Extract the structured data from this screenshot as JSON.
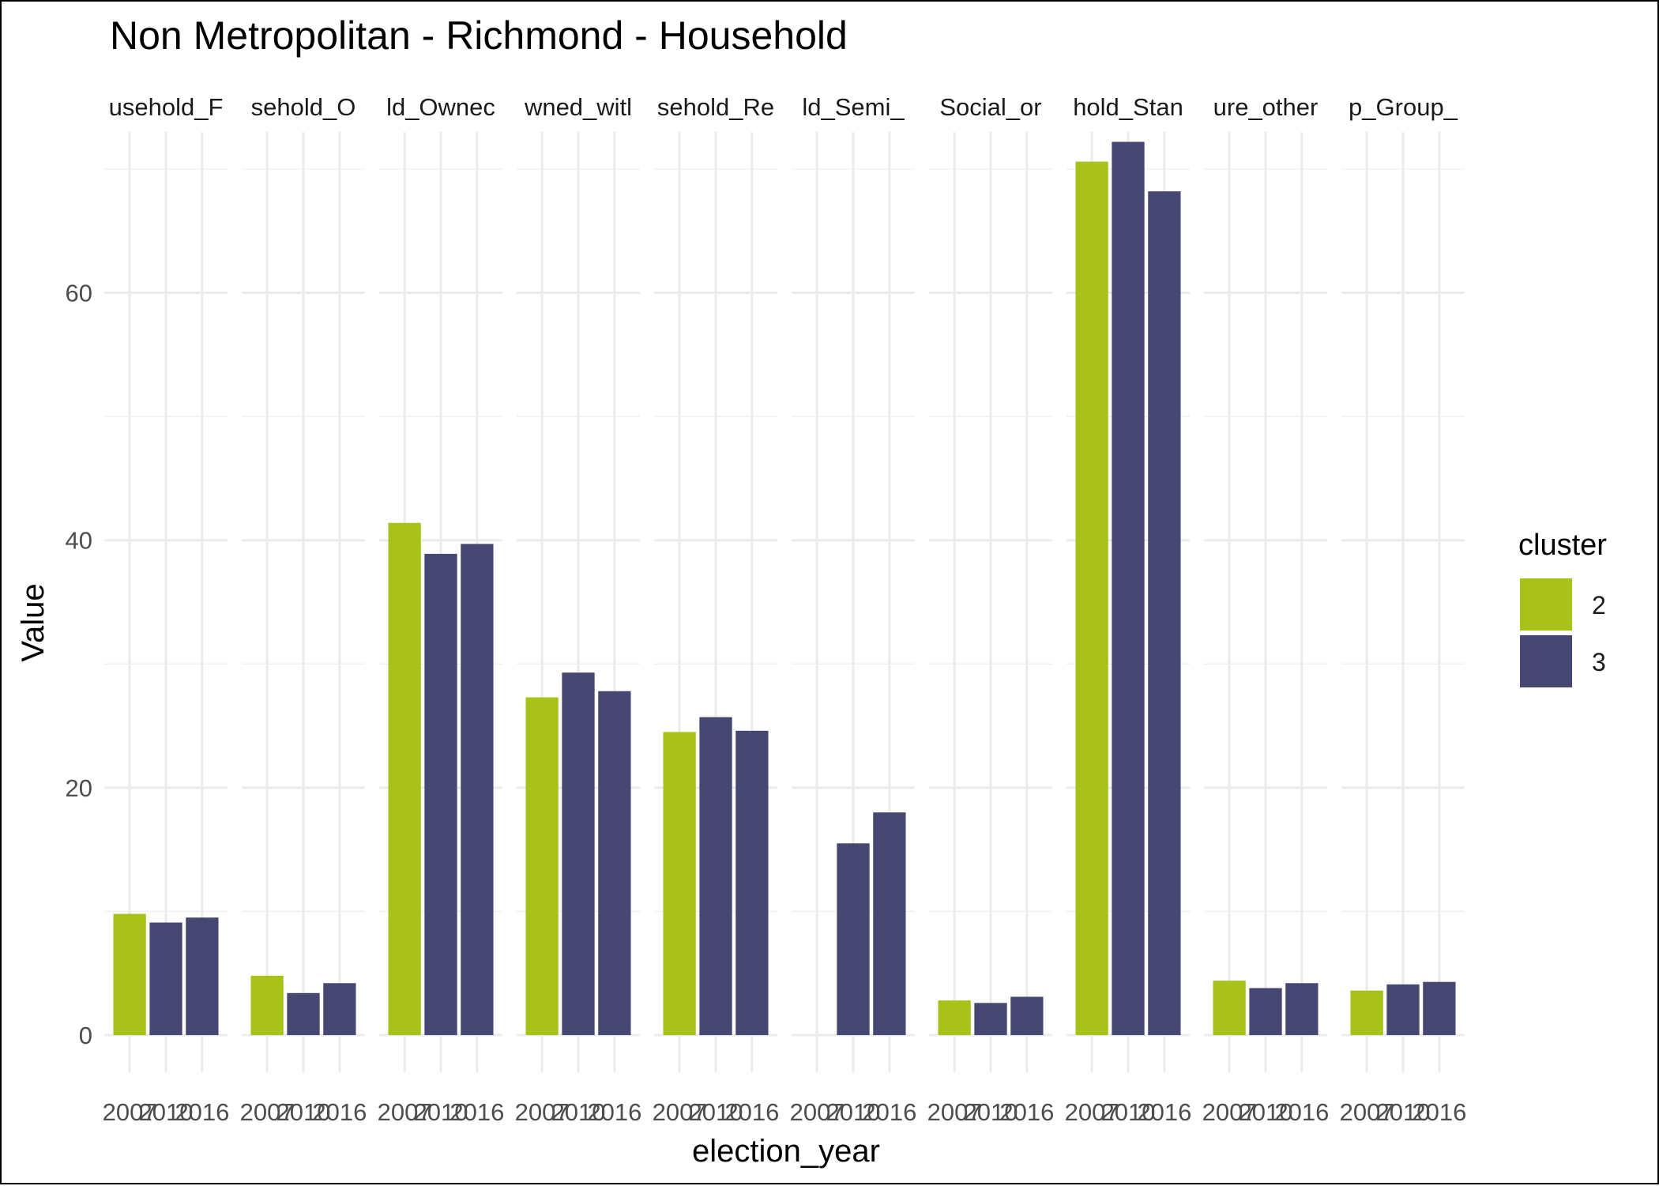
{
  "chart_data": {
    "type": "bar",
    "title": "Non Metropolitan - Richmond - Household",
    "xlabel": "election_year",
    "ylabel": "Value",
    "ylim": [
      -3,
      73
    ],
    "yticks": [
      0,
      20,
      40,
      60
    ],
    "x_categories": [
      "2007",
      "2010",
      "2016"
    ],
    "grid": true,
    "legend": {
      "title": "cluster",
      "position": "right",
      "entries": [
        {
          "label": "2",
          "color": "#a8c21a"
        },
        {
          "label": "3",
          "color": "#474774"
        }
      ]
    },
    "panels": [
      {
        "strip": "usehold_F",
        "values": [
          {
            "year": "2007",
            "cluster": "2",
            "value": 9.8
          },
          {
            "year": "2010",
            "cluster": "3",
            "value": 9.1
          },
          {
            "year": "2016",
            "cluster": "3",
            "value": 9.5
          }
        ]
      },
      {
        "strip": "sehold_O",
        "values": [
          {
            "year": "2007",
            "cluster": "2",
            "value": 4.8
          },
          {
            "year": "2010",
            "cluster": "3",
            "value": 3.4
          },
          {
            "year": "2016",
            "cluster": "3",
            "value": 4.2
          }
        ]
      },
      {
        "strip": "ld_Ownec",
        "values": [
          {
            "year": "2007",
            "cluster": "2",
            "value": 41.4
          },
          {
            "year": "2010",
            "cluster": "3",
            "value": 38.9
          },
          {
            "year": "2016",
            "cluster": "3",
            "value": 39.7
          }
        ]
      },
      {
        "strip": "wned_witl",
        "values": [
          {
            "year": "2007",
            "cluster": "2",
            "value": 27.3
          },
          {
            "year": "2010",
            "cluster": "3",
            "value": 29.3
          },
          {
            "year": "2016",
            "cluster": "3",
            "value": 27.8
          }
        ]
      },
      {
        "strip": "sehold_Re",
        "values": [
          {
            "year": "2007",
            "cluster": "2",
            "value": 24.5
          },
          {
            "year": "2010",
            "cluster": "3",
            "value": 25.7
          },
          {
            "year": "2016",
            "cluster": "3",
            "value": 24.6
          }
        ]
      },
      {
        "strip": "ld_Semi_",
        "values": [
          {
            "year": "2010",
            "cluster": "3",
            "value": 15.5
          },
          {
            "year": "2016",
            "cluster": "3",
            "value": 18.0
          }
        ]
      },
      {
        "strip": "Social_or",
        "values": [
          {
            "year": "2007",
            "cluster": "2",
            "value": 2.8
          },
          {
            "year": "2010",
            "cluster": "3",
            "value": 2.6
          },
          {
            "year": "2016",
            "cluster": "3",
            "value": 3.1
          }
        ]
      },
      {
        "strip": "hold_Stan",
        "values": [
          {
            "year": "2007",
            "cluster": "2",
            "value": 70.6
          },
          {
            "year": "2010",
            "cluster": "3",
            "value": 72.2
          },
          {
            "year": "2016",
            "cluster": "3",
            "value": 68.2
          }
        ]
      },
      {
        "strip": "ure_other",
        "values": [
          {
            "year": "2007",
            "cluster": "2",
            "value": 4.4
          },
          {
            "year": "2010",
            "cluster": "3",
            "value": 3.8
          },
          {
            "year": "2016",
            "cluster": "3",
            "value": 4.2
          }
        ]
      },
      {
        "strip": "p_Group_",
        "values": [
          {
            "year": "2007",
            "cluster": "2",
            "value": 3.6
          },
          {
            "year": "2010",
            "cluster": "3",
            "value": 4.1
          },
          {
            "year": "2016",
            "cluster": "3",
            "value": 4.3
          }
        ]
      }
    ]
  }
}
